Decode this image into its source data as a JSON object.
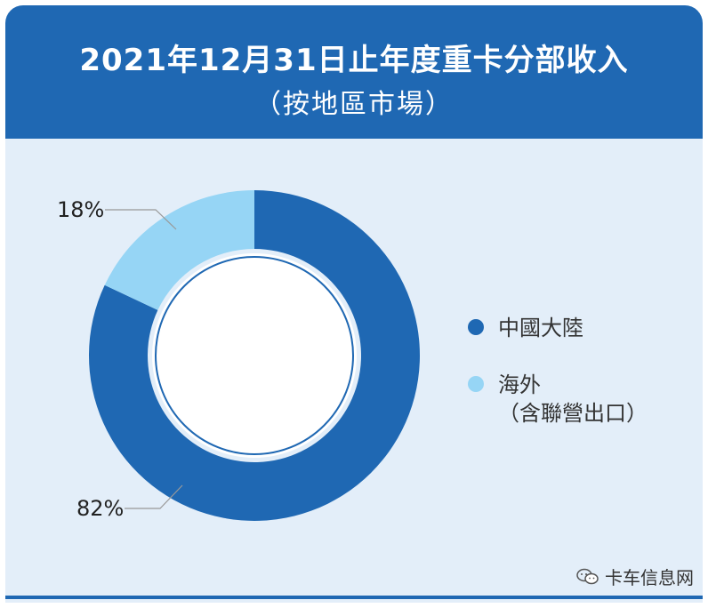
{
  "header": {
    "title_line1": "2021年12月31日止年度重卡分部收入",
    "title_line2": "（按地區市場）"
  },
  "colors": {
    "header_bg": "#1f68b3",
    "panel_bg": "#e3eef9",
    "series_dark": "#1f68b3",
    "series_light": "#96d5f5"
  },
  "chart_data": {
    "type": "pie",
    "style": "donut",
    "categories": [
      "中國大陸",
      "海外（含聯營出口）"
    ],
    "values": [
      82,
      18
    ],
    "value_labels": [
      "82%",
      "18%"
    ],
    "colors": [
      "#1f68b3",
      "#96d5f5"
    ],
    "legend_position": "right"
  },
  "legend": {
    "item1": "中國大陸",
    "item2_line1": "海外",
    "item2_line2": "（含聯營出口）"
  },
  "labels": {
    "pct_large": "82%",
    "pct_small": "18%"
  },
  "watermark": {
    "text": "卡车信息网",
    "icon": "wechat-icon"
  }
}
